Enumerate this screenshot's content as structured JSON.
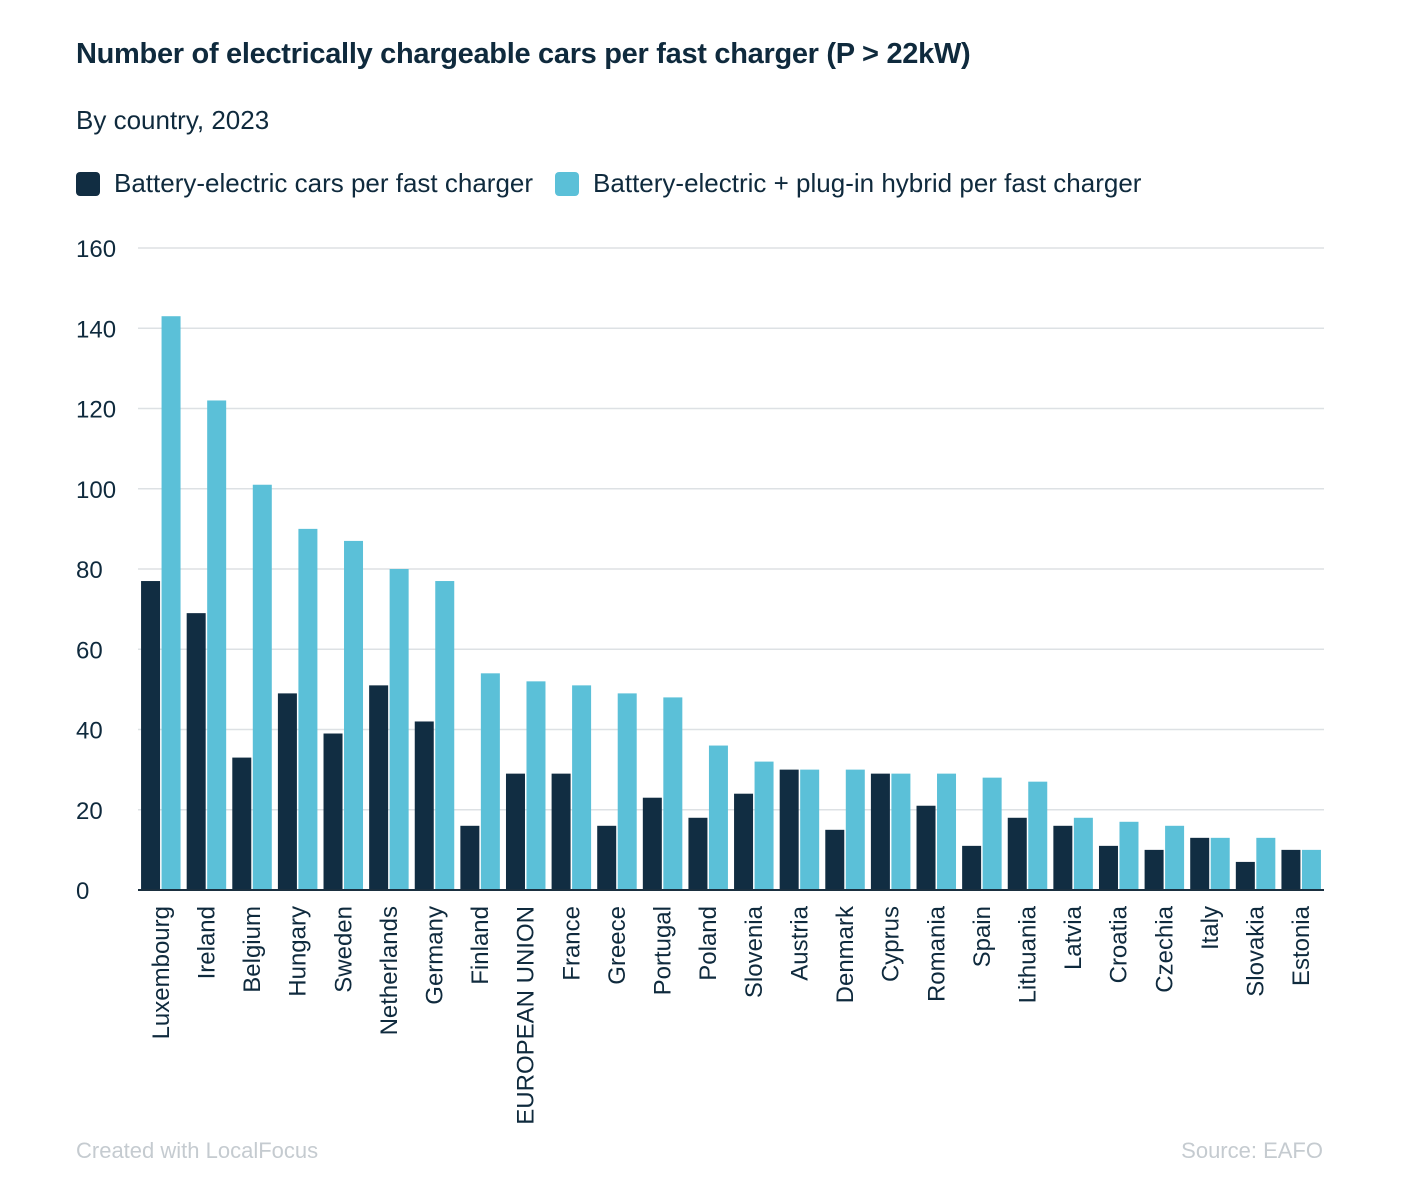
{
  "colors": {
    "bev": "#112d42",
    "phev": "#5bc0d8",
    "grid": "#dde1e4",
    "text": "#0f2a3d",
    "footer": "#c5cbd0"
  },
  "footer": {
    "credit": "Created with LocalFocus",
    "source": "Source:  EAFO"
  },
  "chart_data": {
    "type": "bar",
    "title": "Number of electrically chargeable cars per fast charger (P > 22kW)",
    "subtitle": "By country, 2023",
    "legend_placement": "top-left",
    "grid": true,
    "ylim": [
      0,
      160
    ],
    "yticks": [
      0,
      20,
      40,
      60,
      80,
      100,
      120,
      140,
      160
    ],
    "categories": [
      "Luxembourg",
      "Ireland",
      "Belgium",
      "Hungary",
      "Sweden",
      "Netherlands",
      "Germany",
      "Finland",
      "EUROPEAN UNION",
      "France",
      "Greece",
      "Portugal",
      "Poland",
      "Slovenia",
      "Austria",
      "Denmark",
      "Cyprus",
      "Romania",
      "Spain",
      "Lithuania",
      "Latvia",
      "Croatia",
      "Czechia",
      "Italy",
      "Slovakia",
      "Estonia"
    ],
    "series": [
      {
        "name": "Battery-electric cars per fast charger",
        "values": [
          77,
          69,
          33,
          49,
          39,
          51,
          42,
          16,
          29,
          29,
          16,
          23,
          18,
          24,
          30,
          15,
          29,
          21,
          11,
          18,
          16,
          11,
          10,
          13,
          7,
          10
        ]
      },
      {
        "name": "Battery-electric + plug-in hybrid per fast charger",
        "values": [
          143,
          122,
          101,
          90,
          87,
          80,
          77,
          54,
          52,
          51,
          49,
          48,
          36,
          32,
          30,
          30,
          29,
          29,
          28,
          27,
          18,
          17,
          16,
          13,
          13,
          10
        ]
      }
    ]
  }
}
